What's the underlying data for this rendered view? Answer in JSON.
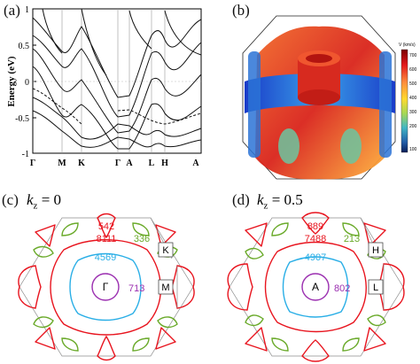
{
  "panels": {
    "a": {
      "label": "(a)",
      "ylabel": "Energy (eV)",
      "yticks": [
        "1",
        "0.5",
        "0",
        "-0.5",
        "-1"
      ],
      "xticks": [
        "Γ",
        "M",
        "K",
        "Γ",
        "A",
        "L",
        "H",
        "A"
      ]
    },
    "b": {
      "label": "(b)",
      "colorbar_title": "V (km/s)",
      "colorbar_ticks": [
        "700",
        "600",
        "500",
        "400",
        "300",
        "200",
        "100"
      ],
      "colorbar_colors": [
        "#7a0000",
        "#e31a1c",
        "#fd8d3c",
        "#ffd92f",
        "#a6d854",
        "#41b6c4",
        "#225ea8",
        "#081d58"
      ]
    },
    "c": {
      "label": "(c)",
      "kz_symbol": "k",
      "kz_sub": "z",
      "kz_value": " = 0",
      "values": {
        "red_top": "542",
        "red_inner": "8111",
        "green": "336",
        "blue": "4569",
        "purple": "713"
      },
      "points": {
        "center": "Γ",
        "corner": "K",
        "edge": "M"
      }
    },
    "d": {
      "label": "(d)",
      "kz_symbol": "k",
      "kz_sub": "z",
      "kz_value": " = 0.5",
      "values": {
        "red_top": "889",
        "red_inner": "7488",
        "green": "213",
        "blue": "4907",
        "purple": "802"
      },
      "points": {
        "center": "A",
        "corner": "H",
        "edge": "L"
      }
    },
    "colors": {
      "red": "#e8141e",
      "green": "#6aaa2a",
      "blue": "#29aee6",
      "purple": "#9b2fb0",
      "gray": "#8c8c8c"
    }
  }
}
